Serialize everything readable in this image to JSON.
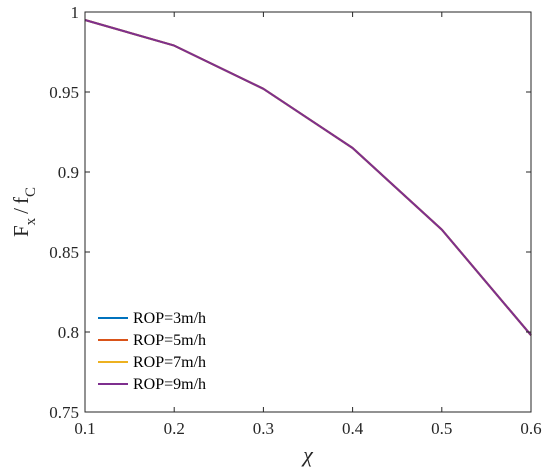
{
  "chart_data": {
    "type": "line",
    "x": [
      0.1,
      0.2,
      0.3,
      0.4,
      0.5,
      0.6
    ],
    "xlim": [
      0.1,
      0.6
    ],
    "ylim": [
      0.75,
      1.0
    ],
    "xticks": [
      0.1,
      0.2,
      0.3,
      0.4,
      0.5,
      0.6
    ],
    "yticks": [
      0.75,
      0.8,
      0.85,
      0.9,
      0.95,
      1.0
    ],
    "xtick_labels": [
      "0.1",
      "0.2",
      "0.3",
      "0.4",
      "0.5",
      "0.6"
    ],
    "ytick_labels": [
      "0.75",
      "0.8",
      "0.85",
      "0.9",
      "0.95",
      "1"
    ],
    "xlabel": "χ",
    "ylabel": {
      "F": "F",
      "x": "x",
      "slash": "/",
      "f": "f",
      "C": "C"
    },
    "grid": false,
    "legend_position": "bottom-left",
    "series": [
      {
        "name": "ROP=3m/h",
        "color": "#0072BD",
        "values": [
          0.995,
          0.979,
          0.952,
          0.915,
          0.864,
          0.798
        ]
      },
      {
        "name": "ROP=5m/h",
        "color": "#D95319",
        "values": [
          0.995,
          0.979,
          0.952,
          0.915,
          0.864,
          0.798
        ]
      },
      {
        "name": "ROP=7m/h",
        "color": "#EDB120",
        "values": [
          0.995,
          0.979,
          0.952,
          0.915,
          0.864,
          0.798
        ]
      },
      {
        "name": "ROP=9m/h",
        "color": "#7E2F8E",
        "values": [
          0.995,
          0.979,
          0.952,
          0.915,
          0.864,
          0.798
        ]
      }
    ]
  }
}
